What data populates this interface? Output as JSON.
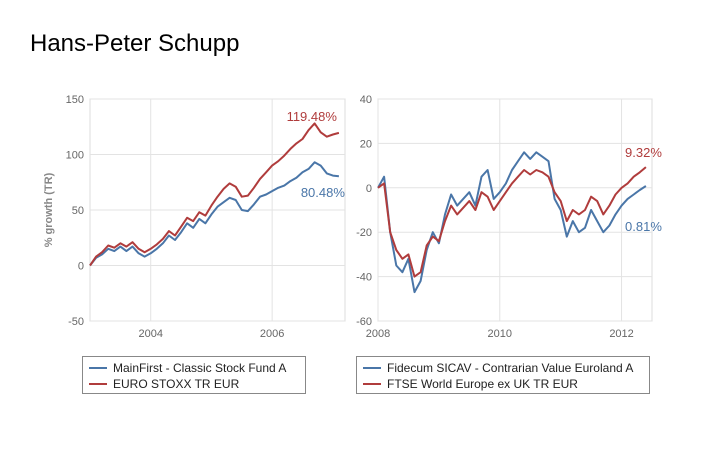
{
  "title": "Hans-Peter Schupp",
  "colors": {
    "blue": "#4a76a8",
    "red": "#b03c3c",
    "grid": "#e3e3e3",
    "tick": "#666666"
  },
  "chart_data": [
    {
      "type": "line",
      "ylabel": "% growth (TR)",
      "xlim": [
        2003.0,
        2007.2
      ],
      "ylim": [
        -50,
        150
      ],
      "x_ticks": [
        2004,
        2006
      ],
      "x_tick_labels": [
        "2004",
        "2006"
      ],
      "y_ticks": [
        -50,
        0,
        50,
        100,
        150
      ],
      "y_tick_labels": [
        "-50",
        "0",
        "50",
        "100",
        "150"
      ],
      "grid": true,
      "legend_position": "bottom",
      "series": [
        {
          "name": "MainFirst - Classic Stock Fund A",
          "color": "#4a76a8",
          "end_label": "80.48%",
          "x": [
            2003.0,
            2003.1,
            2003.2,
            2003.3,
            2003.4,
            2003.5,
            2003.6,
            2003.7,
            2003.8,
            2003.9,
            2004.0,
            2004.1,
            2004.2,
            2004.3,
            2004.4,
            2004.5,
            2004.6,
            2004.7,
            2004.8,
            2004.9,
            2005.0,
            2005.1,
            2005.2,
            2005.3,
            2005.4,
            2005.5,
            2005.6,
            2005.7,
            2005.8,
            2005.9,
            2006.0,
            2006.1,
            2006.2,
            2006.3,
            2006.4,
            2006.5,
            2006.6,
            2006.7,
            2006.8,
            2006.9,
            2007.0,
            2007.1
          ],
          "y": [
            0,
            7,
            10,
            15,
            13,
            17,
            13,
            17,
            11,
            8,
            11,
            15,
            20,
            27,
            23,
            30,
            38,
            34,
            42,
            38,
            46,
            53,
            57,
            61,
            59,
            50,
            49,
            55,
            62,
            64,
            67,
            70,
            72,
            76,
            79,
            84,
            87,
            93,
            90,
            83,
            81,
            80.48
          ]
        },
        {
          "name": "EURO STOXX TR EUR",
          "color": "#b03c3c",
          "end_label": "119.48%",
          "x": [
            2003.0,
            2003.1,
            2003.2,
            2003.3,
            2003.4,
            2003.5,
            2003.6,
            2003.7,
            2003.8,
            2003.9,
            2004.0,
            2004.1,
            2004.2,
            2004.3,
            2004.4,
            2004.5,
            2004.6,
            2004.7,
            2004.8,
            2004.9,
            2005.0,
            2005.1,
            2005.2,
            2005.3,
            2005.4,
            2005.5,
            2005.6,
            2005.7,
            2005.8,
            2005.9,
            2006.0,
            2006.1,
            2006.2,
            2006.3,
            2006.4,
            2006.5,
            2006.6,
            2006.7,
            2006.8,
            2006.9,
            2007.0,
            2007.1
          ],
          "y": [
            0,
            8,
            12,
            18,
            16,
            20,
            17,
            21,
            15,
            12,
            15,
            19,
            24,
            31,
            27,
            35,
            43,
            40,
            48,
            45,
            54,
            62,
            69,
            74,
            71,
            62,
            63,
            70,
            78,
            84,
            90,
            94,
            99,
            105,
            110,
            114,
            122,
            128,
            120,
            116,
            118,
            119.48
          ]
        }
      ]
    },
    {
      "type": "line",
      "xlim": [
        2008.0,
        2012.5
      ],
      "ylim": [
        -60,
        40
      ],
      "x_ticks": [
        2008,
        2010,
        2012
      ],
      "x_tick_labels": [
        "2008",
        "2010",
        "2012"
      ],
      "y_ticks": [
        -60,
        -40,
        -20,
        0,
        20,
        40
      ],
      "y_tick_labels": [
        "-60",
        "-40",
        "-20",
        "0",
        "20",
        "40"
      ],
      "grid": true,
      "legend_position": "bottom",
      "series": [
        {
          "name": "Fidecum SICAV - Contrarian Value Euroland A",
          "color": "#4a76a8",
          "end_label": "0.81%",
          "x": [
            2008.0,
            2008.1,
            2008.2,
            2008.3,
            2008.4,
            2008.5,
            2008.6,
            2008.7,
            2008.8,
            2008.9,
            2009.0,
            2009.1,
            2009.2,
            2009.3,
            2009.4,
            2009.5,
            2009.6,
            2009.7,
            2009.8,
            2009.9,
            2010.0,
            2010.1,
            2010.2,
            2010.3,
            2010.4,
            2010.5,
            2010.6,
            2010.7,
            2010.8,
            2010.9,
            2011.0,
            2011.1,
            2011.2,
            2011.3,
            2011.4,
            2011.5,
            2011.6,
            2011.7,
            2011.8,
            2011.9,
            2012.0,
            2012.1,
            2012.2,
            2012.3,
            2012.4
          ],
          "y": [
            0,
            5,
            -20,
            -35,
            -38,
            -32,
            -47,
            -42,
            -28,
            -20,
            -25,
            -12,
            -3,
            -8,
            -5,
            -2,
            -8,
            5,
            8,
            -5,
            -2,
            2,
            8,
            12,
            16,
            13,
            16,
            14,
            12,
            -5,
            -10,
            -22,
            -15,
            -20,
            -18,
            -10,
            -15,
            -20,
            -17,
            -12,
            -8,
            -5,
            -3,
            -1,
            0.81
          ]
        },
        {
          "name": "FTSE World Europe ex UK TR EUR",
          "color": "#b03c3c",
          "end_label": "9.32%",
          "x": [
            2008.0,
            2008.1,
            2008.2,
            2008.3,
            2008.4,
            2008.5,
            2008.6,
            2008.7,
            2008.8,
            2008.9,
            2009.0,
            2009.1,
            2009.2,
            2009.3,
            2009.4,
            2009.5,
            2009.6,
            2009.7,
            2009.8,
            2009.9,
            2010.0,
            2010.1,
            2010.2,
            2010.3,
            2010.4,
            2010.5,
            2010.6,
            2010.7,
            2010.8,
            2010.9,
            2011.0,
            2011.1,
            2011.2,
            2011.3,
            2011.4,
            2011.5,
            2011.6,
            2011.7,
            2011.8,
            2011.9,
            2012.0,
            2012.1,
            2012.2,
            2012.3,
            2012.4
          ],
          "y": [
            0,
            2,
            -20,
            -28,
            -32,
            -30,
            -40,
            -38,
            -26,
            -22,
            -24,
            -15,
            -8,
            -12,
            -9,
            -6,
            -10,
            -2,
            -4,
            -10,
            -6,
            -2,
            2,
            5,
            8,
            6,
            8,
            7,
            5,
            -2,
            -6,
            -15,
            -10,
            -12,
            -10,
            -4,
            -6,
            -12,
            -8,
            -3,
            0,
            2,
            5,
            7,
            9.32
          ]
        }
      ]
    }
  ]
}
